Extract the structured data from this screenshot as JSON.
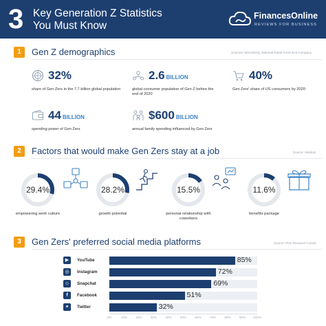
{
  "header": {
    "number": "3",
    "title_line1": "Key Generation Z Statistics",
    "title_line2": "You Must Know",
    "logo_name": "FinancesOnline",
    "logo_tagline": "REVIEWS FOR BUSINESS"
  },
  "section1": {
    "badge": "1",
    "title": "Gen Z demographics",
    "source": "Sources: Bloomberg, National Retail Fresh Exit Company",
    "stats": [
      {
        "value": "32%",
        "unit": "",
        "desc": "share of Gen Zers in the 7.7 billion global population",
        "icon": "globe-icon"
      },
      {
        "value": "2.6",
        "unit": "BILLION",
        "desc": "global consumer population of Gen Z before the end of 2020",
        "icon": "people-network-icon"
      },
      {
        "value": "40%",
        "unit": "",
        "desc": "Gen Zers' share of US consumers by 2020",
        "icon": "shopping-cart-icon"
      },
      {
        "value": "44",
        "unit": "BILLION",
        "desc": "spending power of Gen Zers",
        "icon": "wallet-icon"
      },
      {
        "value": "$600",
        "unit": "BILLION",
        "desc": "annual family spending influenced by Gen Zers",
        "icon": "family-icon"
      }
    ]
  },
  "section2": {
    "badge": "2",
    "title": "Factors that would make Gen Zers stay at a job",
    "source": "Source: Medium",
    "factors": [
      {
        "value": "29.4%",
        "label": "empowering work culture",
        "icon": "team-network-icon"
      },
      {
        "value": "28.2%",
        "label": "growth potential",
        "icon": "climbing-steps-icon"
      },
      {
        "value": "15.5%",
        "label": "personal relationship with coworkers",
        "icon": "coworkers-icon"
      },
      {
        "value": "11.6%",
        "label": "benefits package",
        "icon": "gift-icon"
      }
    ]
  },
  "section3": {
    "badge": "3",
    "title": "Gen Zers' preferred social media platforms",
    "source": "Source: Pew Research Center"
  },
  "chart_data": [
    {
      "type": "pie",
      "categories": [
        "empowering work culture",
        "growth potential",
        "personal relationship with coworkers",
        "benefits package"
      ],
      "values": [
        29.4,
        28.2,
        15.5,
        11.6
      ]
    },
    {
      "type": "bar",
      "orientation": "horizontal",
      "categories": [
        "YouTube",
        "Instagram",
        "Snapchat",
        "Facebook",
        "Twitter"
      ],
      "values": [
        85,
        72,
        69,
        51,
        32
      ],
      "value_labels": [
        "85%",
        "72%",
        "69%",
        "51%",
        "32%"
      ],
      "xlim": [
        0,
        100
      ],
      "x_ticks": [
        "0%",
        "10%",
        "20%",
        "30%",
        "40%",
        "50%",
        "60%",
        "70%",
        "80%",
        "90%",
        "100%"
      ],
      "icons": [
        "youtube-icon",
        "instagram-icon",
        "snapchat-icon",
        "facebook-icon",
        "twitter-icon"
      ]
    }
  ],
  "colors": {
    "navy": "#1d3f70",
    "accent_blue": "#3a83c6",
    "orange": "#f39c12",
    "ring_track": "#e4e7eb"
  }
}
